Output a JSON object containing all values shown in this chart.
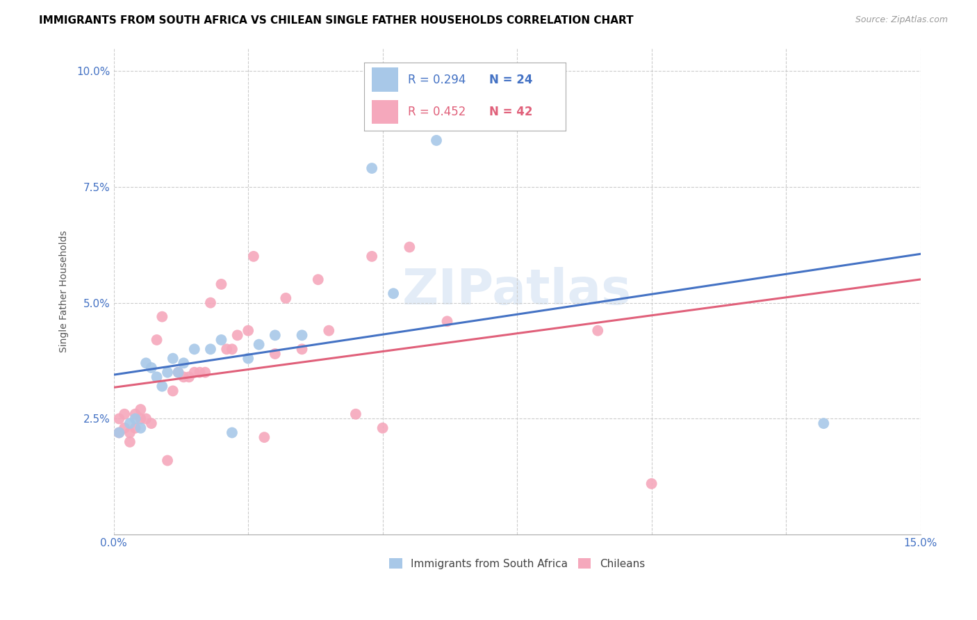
{
  "title": "IMMIGRANTS FROM SOUTH AFRICA VS CHILEAN SINGLE FATHER HOUSEHOLDS CORRELATION CHART",
  "source": "Source: ZipAtlas.com",
  "ylabel": "Single Father Households",
  "xlim": [
    0.0,
    0.15
  ],
  "ylim": [
    0.0,
    0.105
  ],
  "blue_R": "0.294",
  "blue_N": "24",
  "pink_R": "0.452",
  "pink_N": "42",
  "blue_color": "#a8c8e8",
  "pink_color": "#f5a8bc",
  "blue_line_color": "#4472c4",
  "pink_line_color": "#e0607a",
  "tick_color": "#4472c4",
  "watermark_color": "#c8daf0",
  "blue_points_x": [
    0.001,
    0.003,
    0.004,
    0.005,
    0.006,
    0.007,
    0.008,
    0.009,
    0.01,
    0.011,
    0.012,
    0.013,
    0.015,
    0.018,
    0.02,
    0.022,
    0.025,
    0.027,
    0.03,
    0.035,
    0.048,
    0.052,
    0.06,
    0.132
  ],
  "blue_points_y": [
    0.022,
    0.024,
    0.025,
    0.023,
    0.037,
    0.036,
    0.034,
    0.032,
    0.035,
    0.038,
    0.035,
    0.037,
    0.04,
    0.04,
    0.042,
    0.022,
    0.038,
    0.041,
    0.043,
    0.043,
    0.079,
    0.052,
    0.085,
    0.024
  ],
  "pink_points_x": [
    0.001,
    0.001,
    0.002,
    0.002,
    0.003,
    0.003,
    0.004,
    0.004,
    0.005,
    0.005,
    0.006,
    0.007,
    0.008,
    0.009,
    0.01,
    0.011,
    0.012,
    0.013,
    0.014,
    0.015,
    0.016,
    0.017,
    0.018,
    0.02,
    0.021,
    0.022,
    0.023,
    0.025,
    0.026,
    0.028,
    0.03,
    0.032,
    0.035,
    0.038,
    0.04,
    0.045,
    0.048,
    0.05,
    0.055,
    0.062,
    0.09,
    0.1
  ],
  "pink_points_y": [
    0.022,
    0.025,
    0.023,
    0.026,
    0.02,
    0.022,
    0.023,
    0.026,
    0.027,
    0.025,
    0.025,
    0.024,
    0.042,
    0.047,
    0.016,
    0.031,
    0.035,
    0.034,
    0.034,
    0.035,
    0.035,
    0.035,
    0.05,
    0.054,
    0.04,
    0.04,
    0.043,
    0.044,
    0.06,
    0.021,
    0.039,
    0.051,
    0.04,
    0.055,
    0.044,
    0.026,
    0.06,
    0.023,
    0.062,
    0.046,
    0.044,
    0.011
  ]
}
